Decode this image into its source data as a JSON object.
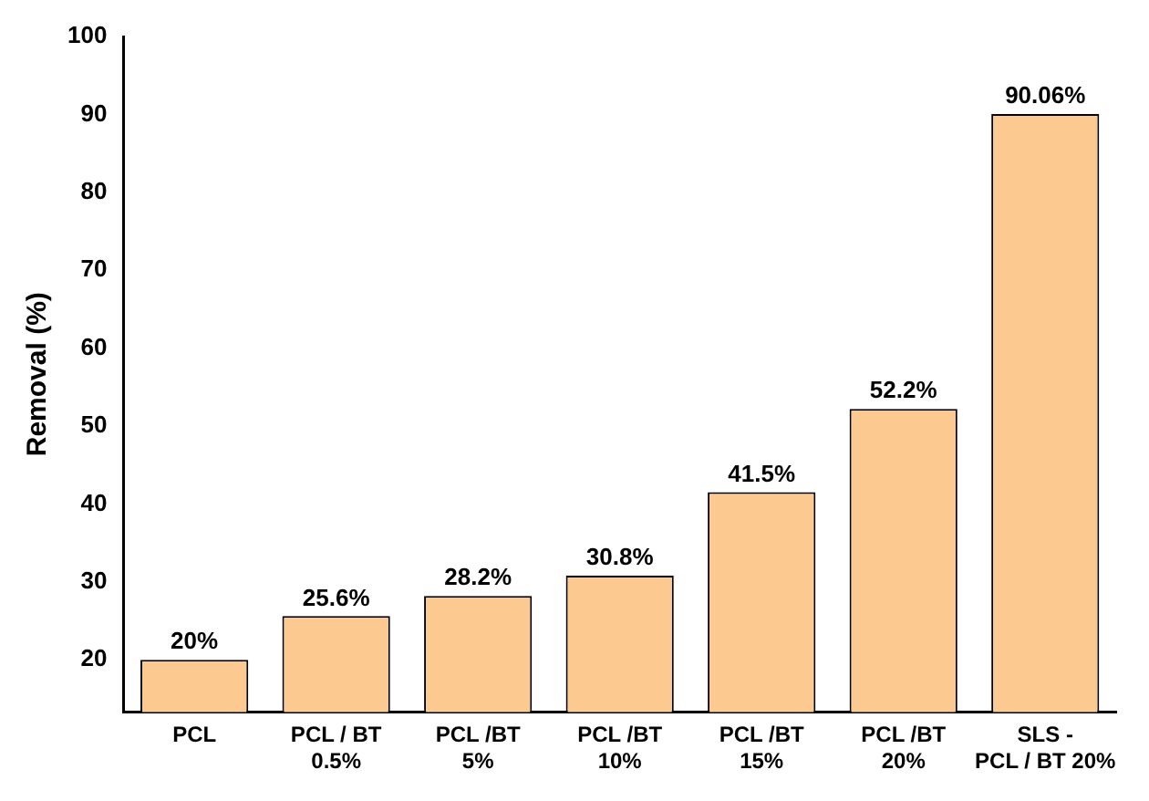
{
  "chart_data": {
    "type": "bar",
    "ylabel": "Removal (%)",
    "categories": [
      "PCL",
      "PCL / BT\n0.5%",
      "PCL /BT\n5%",
      "PCL /BT\n10%",
      "PCL /BT\n15%",
      "PCL /BT\n20%",
      "SLS -\nPCL / BT 20%"
    ],
    "values": [
      20,
      25.6,
      28.2,
      30.8,
      41.5,
      52.2,
      90.06
    ],
    "value_labels": [
      "20%",
      "25.6%",
      "28.2%",
      "30.8%",
      "41.5%",
      "52.2%",
      "90.06%"
    ],
    "color": "#fcca90",
    "ylim": [
      13.3,
      100
    ],
    "yticks": [
      20,
      30,
      40,
      50,
      60,
      70,
      80,
      90,
      100
    ],
    "grid": false,
    "legend": false
  }
}
